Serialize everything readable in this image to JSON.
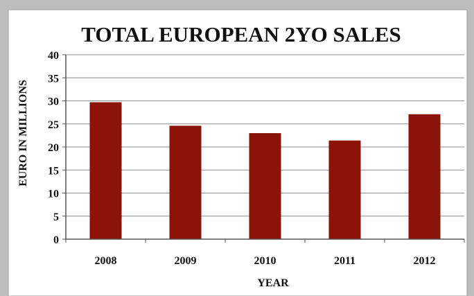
{
  "chart_data": {
    "type": "bar",
    "title": "TOTAL EUROPEAN 2YO SALES",
    "xlabel": "YEAR",
    "ylabel": "EURO IN MILLIONS",
    "categories": [
      "2008",
      "2009",
      "2010",
      "2011",
      "2012"
    ],
    "values": [
      29.7,
      24.6,
      23.0,
      21.4,
      27.1
    ],
    "ylim": [
      0,
      40
    ],
    "yticks": [
      "0",
      "5",
      "10",
      "15",
      "20",
      "25",
      "30",
      "35",
      "40"
    ],
    "grid": true,
    "legend": "none",
    "bar_color": "#8b1308"
  }
}
